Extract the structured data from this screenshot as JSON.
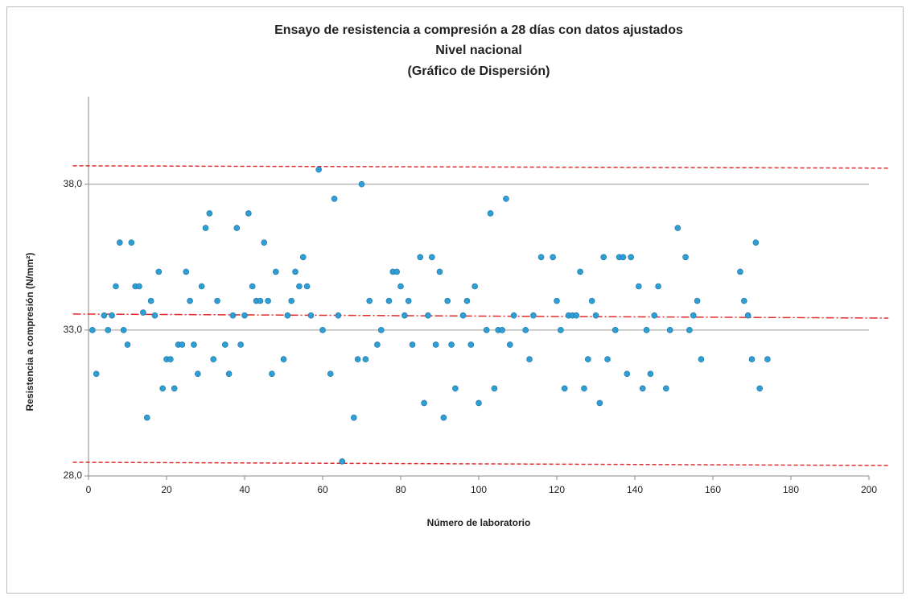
{
  "chart_data": {
    "type": "scatter",
    "title": [
      "Ensayo de resistencia a compresión a 28 días con datos ajustados",
      "Nivel nacional",
      "(Gráfico de Dispersión)"
    ],
    "xlabel": "Número de laboratorio",
    "ylabel": "Resistencia a compresión (N/mm²)",
    "xlim": [
      0,
      200
    ],
    "xticks": [
      0,
      20,
      40,
      60,
      80,
      100,
      120,
      140,
      160,
      180,
      200
    ],
    "ylim": [
      28,
      41
    ],
    "yticks": [
      {
        "value": 28,
        "label": "28,0"
      },
      {
        "value": 33,
        "label": "33,0"
      },
      {
        "value": 38,
        "label": "38,0"
      }
    ],
    "grid": true,
    "color": "#2e9fd6",
    "x": [
      1,
      2,
      4,
      5,
      6,
      7,
      8,
      9,
      10,
      11,
      12,
      13,
      14,
      15,
      16,
      17,
      18,
      19,
      20,
      21,
      22,
      23,
      24,
      25,
      26,
      27,
      28,
      29,
      30,
      31,
      32,
      33,
      35,
      36,
      37,
      38,
      39,
      40,
      41,
      42,
      43,
      44,
      45,
      46,
      47,
      48,
      50,
      51,
      52,
      53,
      54,
      55,
      56,
      57,
      59,
      60,
      62,
      63,
      64,
      65,
      68,
      69,
      70,
      71,
      72,
      74,
      75,
      77,
      78,
      79,
      80,
      81,
      82,
      83,
      85,
      86,
      87,
      88,
      89,
      90,
      91,
      92,
      93,
      94,
      96,
      97,
      98,
      99,
      100,
      102,
      103,
      104,
      105,
      106,
      107,
      108,
      109,
      112,
      113,
      114,
      116,
      119,
      120,
      121,
      122,
      123,
      124,
      125,
      126,
      127,
      128,
      129,
      130,
      131,
      132,
      133,
      135,
      136,
      137,
      138,
      139,
      141,
      142,
      143,
      144,
      145,
      146,
      148,
      149,
      151,
      153,
      154,
      155,
      156,
      157,
      167,
      168,
      169,
      170,
      171,
      172,
      174
    ],
    "values": [
      33.0,
      31.5,
      33.5,
      33.0,
      33.5,
      34.5,
      36.0,
      33.0,
      32.5,
      36.0,
      34.5,
      34.5,
      33.6,
      30.0,
      34.0,
      33.5,
      35.0,
      31.0,
      32.0,
      32.0,
      31.0,
      32.5,
      32.5,
      35.0,
      34.0,
      32.5,
      31.5,
      34.5,
      36.5,
      37.0,
      32.0,
      34.0,
      32.5,
      31.5,
      33.5,
      36.5,
      32.5,
      33.5,
      37.0,
      34.5,
      34.0,
      34.0,
      36.0,
      34.0,
      31.5,
      35.0,
      32.0,
      33.5,
      34.0,
      35.0,
      34.5,
      35.5,
      34.5,
      33.5,
      38.5,
      33.0,
      31.5,
      37.5,
      33.5,
      28.5,
      30.0,
      32.0,
      38.0,
      32.0,
      34.0,
      32.5,
      33.0,
      34.0,
      35.0,
      35.0,
      34.5,
      33.5,
      34.0,
      32.5,
      35.5,
      30.5,
      33.5,
      35.5,
      32.5,
      35.0,
      30.0,
      34.0,
      32.5,
      31.0,
      33.5,
      34.0,
      32.5,
      34.5,
      30.5,
      33.0,
      37.0,
      31.0,
      33.0,
      33.0,
      37.5,
      32.5,
      33.5,
      33.0,
      32.0,
      33.5,
      35.5,
      35.5,
      34.0,
      33.0,
      31.0,
      33.5,
      33.5,
      33.5,
      35.0,
      31.0,
      32.0,
      34.0,
      33.5,
      30.5,
      35.5,
      32.0,
      33.0,
      35.5,
      35.5,
      31.5,
      35.5,
      34.5,
      31.0,
      33.0,
      31.5,
      33.5,
      34.5,
      31.0,
      33.0,
      36.5,
      35.5,
      33.0,
      33.5,
      34.0,
      32.0,
      35.0,
      34.0,
      33.5,
      32.0,
      36.0,
      31.0,
      32.0
    ],
    "lines": [
      {
        "color": "#e32b2b",
        "style": "dashed",
        "x": [
          -4,
          205
        ],
        "values": [
          38.63,
          38.55
        ]
      },
      {
        "color": "#e32b2b",
        "style": "dashdot",
        "x": [
          -4,
          205
        ],
        "values": [
          33.55,
          33.41
        ]
      },
      {
        "color": "#e32b2b",
        "style": "dashed",
        "x": [
          -4,
          205
        ],
        "values": [
          28.47,
          28.36
        ]
      }
    ]
  }
}
